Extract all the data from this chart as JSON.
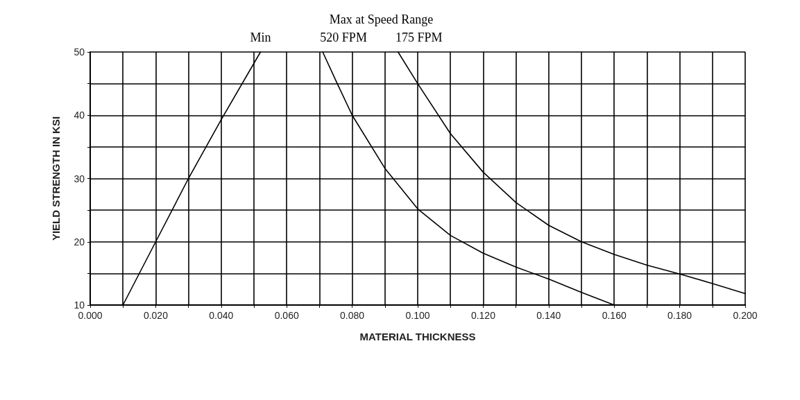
{
  "chart_data": {
    "type": "line",
    "xlabel": "MATERIAL THICKNESS",
    "ylabel": "YIELD STRENGTH IN KSI",
    "legend_title": "Max at Speed Range",
    "series": [
      {
        "name": "Min",
        "color": "#000000",
        "x": [
          0.01,
          0.02,
          0.03,
          0.04,
          0.052
        ],
        "values": [
          10,
          20,
          30,
          39.3,
          50
        ]
      },
      {
        "name": "520 FPM",
        "color": "#000000",
        "x": [
          0.071,
          0.075,
          0.08,
          0.09,
          0.1,
          0.11,
          0.12,
          0.13,
          0.14,
          0.15,
          0.16
        ],
        "values": [
          50,
          45.5,
          40,
          31.6,
          25.2,
          21.0,
          18.2,
          16.0,
          14.1,
          12.0,
          10
        ]
      },
      {
        "name": "175 FPM",
        "color": "#000000",
        "x": [
          0.094,
          0.1,
          0.11,
          0.12,
          0.13,
          0.14,
          0.15,
          0.16,
          0.17,
          0.18,
          0.19,
          0.2
        ],
        "values": [
          50,
          45,
          37.1,
          31.0,
          26.2,
          22.6,
          20,
          18.0,
          16.3,
          14.9,
          13.4,
          11.8
        ]
      }
    ],
    "xlim": [
      0,
      0.2
    ],
    "xticks": [
      {
        "value": 0,
        "label": "0.000"
      },
      {
        "value": 0.01,
        "label": null
      },
      {
        "value": 0.02,
        "label": "0.020"
      },
      {
        "value": 0.03,
        "label": null
      },
      {
        "value": 0.04,
        "label": "0.040"
      },
      {
        "value": 0.05,
        "label": null
      },
      {
        "value": 0.06,
        "label": "0.060"
      },
      {
        "value": 0.07,
        "label": null
      },
      {
        "value": 0.08,
        "label": "0.080"
      },
      {
        "value": 0.09,
        "label": null
      },
      {
        "value": 0.1,
        "label": "0.100"
      },
      {
        "value": 0.11,
        "label": null
      },
      {
        "value": 0.12,
        "label": "0.120"
      },
      {
        "value": 0.13,
        "label": null
      },
      {
        "value": 0.14,
        "label": "0.140"
      },
      {
        "value": 0.15,
        "label": null
      },
      {
        "value": 0.16,
        "label": "0.160"
      },
      {
        "value": 0.17,
        "label": null
      },
      {
        "value": 0.18,
        "label": "0.180"
      },
      {
        "value": 0.19,
        "label": null
      },
      {
        "value": 0.2,
        "label": "0.200"
      }
    ],
    "ylim": [
      10,
      50
    ],
    "yticks": [
      10,
      {
        "value": 15,
        "label": null
      },
      20,
      {
        "value": 25,
        "label": null
      },
      30,
      {
        "value": 35,
        "label": null
      },
      40,
      {
        "value": 45,
        "label": null
      },
      50
    ],
    "grid": true,
    "legend": false,
    "marker": "none",
    "line_style": "solid"
  }
}
